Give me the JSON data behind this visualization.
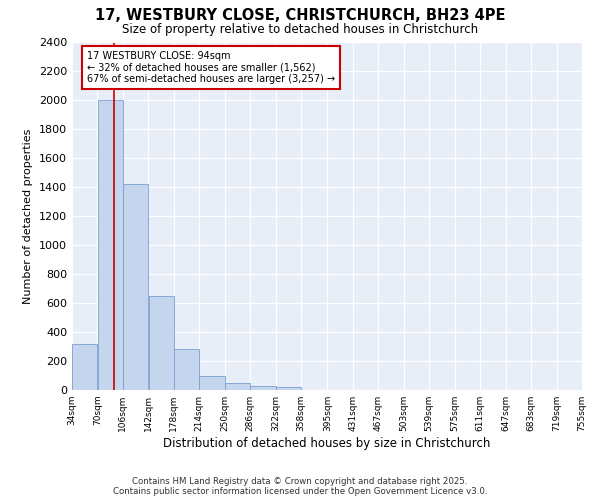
{
  "title1": "17, WESTBURY CLOSE, CHRISTCHURCH, BH23 4PE",
  "title2": "Size of property relative to detached houses in Christchurch",
  "xlabel": "Distribution of detached houses by size in Christchurch",
  "ylabel": "Number of detached properties",
  "bar_heights": [
    320,
    2000,
    1420,
    650,
    280,
    100,
    45,
    30,
    20,
    0,
    0,
    0,
    0,
    0,
    0,
    0,
    0,
    0,
    0,
    0
  ],
  "bin_edges": [
    34,
    70,
    106,
    142,
    178,
    214,
    250,
    286,
    322,
    358,
    395,
    431,
    467,
    503,
    539,
    575,
    611,
    647,
    683,
    719,
    755
  ],
  "tick_labels": [
    "34sqm",
    "70sqm",
    "106sqm",
    "142sqm",
    "178sqm",
    "214sqm",
    "250sqm",
    "286sqm",
    "322sqm",
    "358sqm",
    "395sqm",
    "431sqm",
    "467sqm",
    "503sqm",
    "539sqm",
    "575sqm",
    "611sqm",
    "647sqm",
    "683sqm",
    "719sqm",
    "755sqm"
  ],
  "bar_color": "#c5d5ee",
  "bar_edge_color": "#7a9fd4",
  "plot_bg_color": "#e8eef8",
  "fig_bg_color": "#ffffff",
  "grid_color": "#ffffff",
  "vline_x": 94,
  "vline_color": "#cc0000",
  "annotation_text": "17 WESTBURY CLOSE: 94sqm\n← 32% of detached houses are smaller (1,562)\n67% of semi-detached houses are larger (3,257) →",
  "annotation_box_color": "#ffffff",
  "annotation_box_edge": "#cc0000",
  "ylim": [
    0,
    2400
  ],
  "yticks": [
    0,
    200,
    400,
    600,
    800,
    1000,
    1200,
    1400,
    1600,
    1800,
    2000,
    2200,
    2400
  ],
  "footer1": "Contains HM Land Registry data © Crown copyright and database right 2025.",
  "footer2": "Contains public sector information licensed under the Open Government Licence v3.0."
}
